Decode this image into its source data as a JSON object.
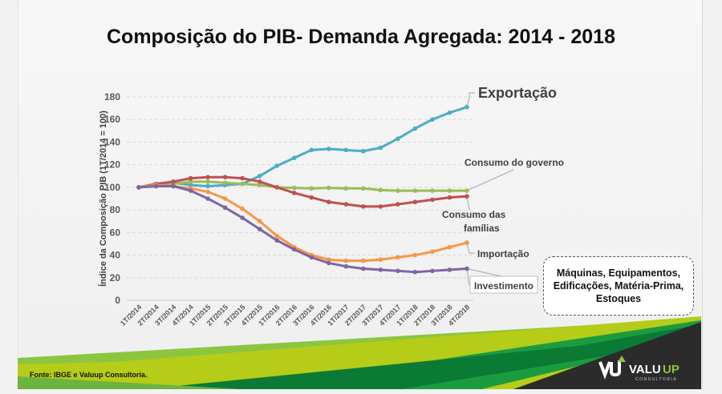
{
  "title": "Composição do PIB- Demanda Agregada: 2014 - 2018",
  "callout": "Máquinas, Equipamentos,\nEdificações, Matéria-Prima,\nEstoques",
  "source": "Fonte: IBGE e Valuup Consultoria.",
  "logo": {
    "name": "VALUUP",
    "tagline": "CONSULTORIA"
  },
  "chart_data": {
    "type": "line",
    "title": "Composição do PIB- Demanda Agregada: 2014 - 2018",
    "ylabel": "Índice da Composição PIB (1T/2014 = 100)",
    "xlabel": "",
    "ylim": [
      0,
      180
    ],
    "yticks": [
      0,
      20,
      40,
      60,
      80,
      100,
      120,
      140,
      160,
      180
    ],
    "grid": true,
    "categories": [
      "1T/2014",
      "2T/2014",
      "3T/2014",
      "4T/2014",
      "1T/2015",
      "2T/2015",
      "3T/2015",
      "4T/2015",
      "1T/2016",
      "2T/2016",
      "3T/2016",
      "4T/2016",
      "1T/2017",
      "2T/2017",
      "3T/2017",
      "4T/2017",
      "1T/2018",
      "2T/2018",
      "3T/2018",
      "4T/2018"
    ],
    "series": [
      {
        "name": "Exportação",
        "color": "#4bacc6",
        "values": [
          100,
          101,
          104,
          102,
          101,
          102,
          103,
          110,
          119,
          126,
          133,
          134,
          133,
          132,
          135,
          143,
          152,
          160,
          166,
          171
        ]
      },
      {
        "name": "Consumo do governo",
        "color": "#9bbb59",
        "values": [
          100,
          102,
          103,
          105,
          105,
          104,
          103,
          102,
          100,
          99.5,
          99,
          99.5,
          99,
          99,
          97.5,
          97,
          97,
          97,
          97,
          97
        ]
      },
      {
        "name": "Consumo das famílias",
        "color": "#c0504d",
        "values": [
          100,
          103,
          105,
          108,
          109,
          109,
          108,
          105,
          100,
          95,
          91,
          87,
          85,
          83,
          83,
          85,
          87,
          89,
          91,
          92
        ]
      },
      {
        "name": "Importação",
        "color": "#f79646",
        "values": [
          100,
          102,
          101,
          99,
          96,
          90,
          81,
          70,
          57,
          47,
          40,
          36,
          35,
          35,
          36,
          38,
          40,
          43,
          47,
          51
        ]
      },
      {
        "name": "Investimento",
        "color": "#8064a2",
        "values": [
          100,
          101,
          101,
          97,
          90,
          82,
          73,
          63,
          53,
          45,
          38,
          33,
          30,
          28,
          27,
          26,
          25,
          26,
          27,
          28
        ]
      }
    ]
  }
}
